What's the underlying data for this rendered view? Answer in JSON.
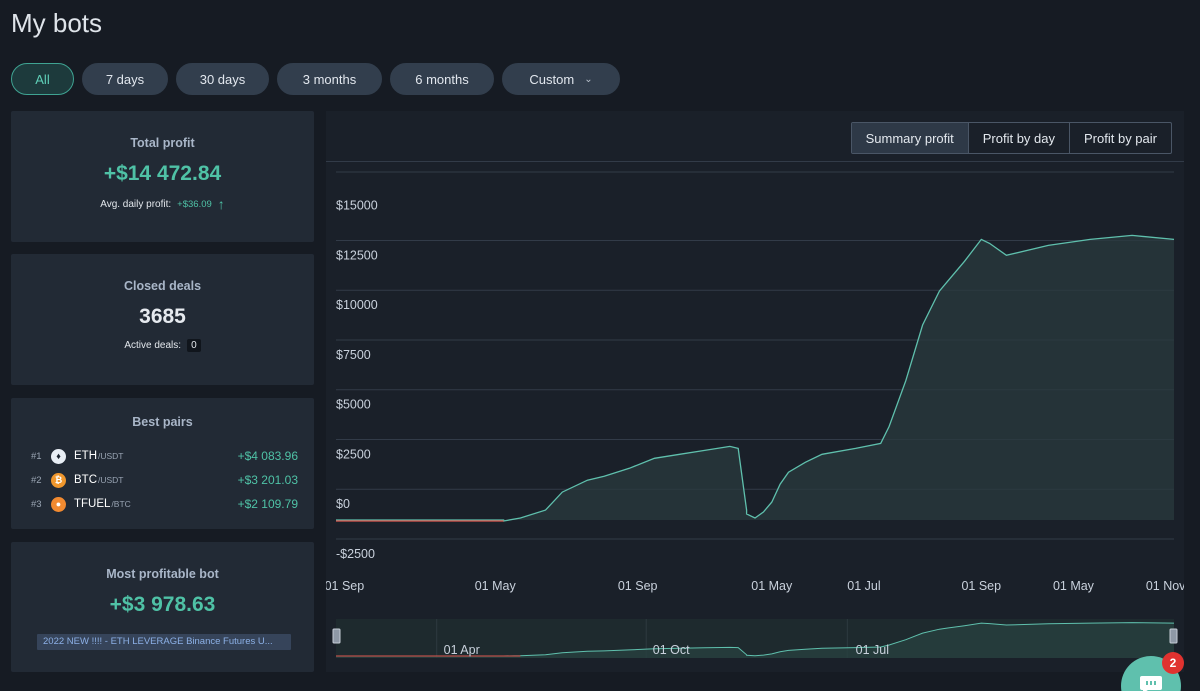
{
  "page": {
    "title": "My bots"
  },
  "filters": [
    {
      "label": "All",
      "active": true
    },
    {
      "label": "7 days"
    },
    {
      "label": "30 days"
    },
    {
      "label": "3 months"
    },
    {
      "label": "6 months"
    },
    {
      "label": "Custom"
    }
  ],
  "total_profit": {
    "title": "Total profit",
    "value": "+$14 472.84",
    "avg_label": "Avg. daily profit:",
    "avg_value": "+$36.09"
  },
  "closed_deals": {
    "title": "Closed deals",
    "value": "3685",
    "active_label": "Active deals:",
    "active_value": "0"
  },
  "best_pairs": {
    "title": "Best pairs",
    "items": [
      {
        "rank": "#1",
        "icon": "eth-coin-icon",
        "base": "ETH",
        "quote": "/USDT",
        "profit": "+$4 083.96"
      },
      {
        "rank": "#2",
        "icon": "btc-coin-icon",
        "base": "BTC",
        "quote": "/USDT",
        "profit": "+$3 201.03"
      },
      {
        "rank": "#3",
        "icon": "tfuel-coin-icon",
        "base": "TFUEL",
        "quote": "/BTC",
        "profit": "+$2 109.79"
      }
    ]
  },
  "most_profitable_bot": {
    "title": "Most profitable bot",
    "value": "+$3 978.63",
    "bot_name": "2022 NEW !!!! - ETH LEVERAGE Binance Futures U..."
  },
  "chart_tabs": [
    {
      "label": "Summary profit",
      "active": true
    },
    {
      "label": "Profit by day"
    },
    {
      "label": "Profit by pair"
    }
  ],
  "chat": {
    "badge": "2"
  },
  "colors": {
    "accent": "#4fc2a6",
    "line": "#5fc0ad",
    "negative": "#e0574f",
    "background": "#161b23",
    "card": "#222a35"
  },
  "chart_data": {
    "type": "area",
    "y_tick_labels": [
      "$15000",
      "$12500",
      "$10000",
      "$7500",
      "$5000",
      "$2500",
      "$0",
      "-$2500"
    ],
    "y_ticks": [
      15000,
      12500,
      10000,
      7500,
      5000,
      2500,
      0,
      -2500
    ],
    "ylim": [
      -2500,
      17500
    ],
    "x_tick_labels": [
      "01 Sep",
      "01 May",
      "01 Sep",
      "01 May",
      "01 Jul",
      "01 Sep",
      "01 May",
      "01 Nov"
    ],
    "x_ticks": [
      0.01,
      0.19,
      0.36,
      0.52,
      0.63,
      0.77,
      0.88,
      0.99
    ],
    "series": [
      {
        "x": [
          0,
          0.2,
          0.2,
          0.22,
          0.25,
          0.27,
          0.3,
          0.32,
          0.35,
          0.38,
          0.41,
          0.44,
          0.47,
          0.48,
          0.49,
          0.49,
          0.5,
          0.51,
          0.52,
          0.53,
          0.54,
          0.56,
          0.58,
          0.62,
          0.65,
          0.66,
          0.68,
          0.7,
          0.72,
          0.73,
          0.75,
          0.77,
          0.78,
          0.8,
          0.85,
          0.9,
          0.95,
          1
        ],
        "y": [
          0,
          0,
          -50,
          100,
          500,
          1400,
          2000,
          2200,
          2600,
          3100,
          3300,
          3500,
          3700,
          3600,
          500,
          300,
          100,
          400,
          900,
          1800,
          2400,
          2900,
          3300,
          3600,
          3850,
          4700,
          7000,
          9800,
          11500,
          12000,
          13000,
          14100,
          13900,
          13300,
          13800,
          14100,
          14300,
          14100
        ]
      }
    ],
    "navigator": {
      "x_tick_labels": [
        "01 Apr",
        "01 Oct",
        "01 Jul"
      ],
      "x_ticks": [
        0.15,
        0.4,
        0.64
      ]
    }
  }
}
